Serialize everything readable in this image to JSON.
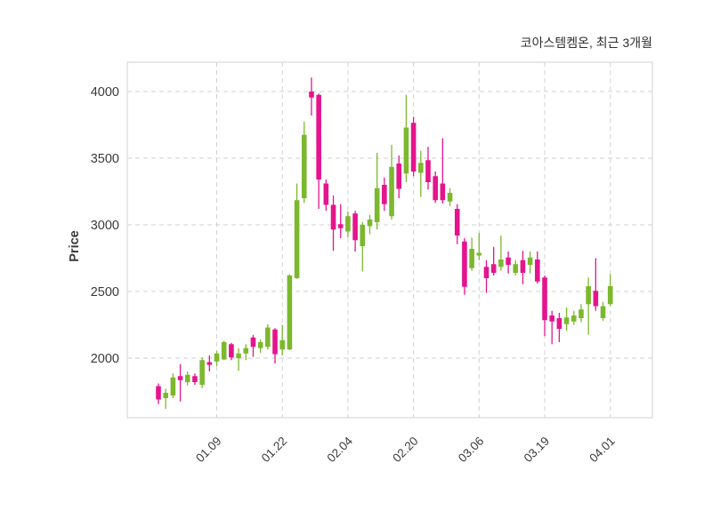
{
  "header": {
    "title": "코아스템켐온, 최근 3개월"
  },
  "chart_data": {
    "type": "candlestick",
    "title": "코아스템켐온, 최근 3개월",
    "xlabel": "",
    "ylabel": "Price",
    "grid": true,
    "legend": "none",
    "ylim": [
      1550,
      4220
    ],
    "yticks": [
      2000,
      2500,
      3000,
      3500,
      4000
    ],
    "ytick_labels": [
      "2000",
      "2500",
      "3000",
      "3500",
      "4000"
    ],
    "xtick_labels": [
      "01.09",
      "01.22",
      "02.04",
      "02.20",
      "03.06",
      "03.19",
      "04.01"
    ],
    "xtick_indices": [
      8,
      17,
      26,
      35,
      44,
      53,
      62
    ],
    "up_color": "#7cb82e",
    "down_color": "#e5148d",
    "grid_color": "#d2d2d2",
    "border_color": "#d9d9d9",
    "background_color": "#ffffff",
    "candles_format": [
      "open",
      "high",
      "low",
      "close"
    ],
    "candles": [
      [
        1790,
        1810,
        1655,
        1690
      ],
      [
        1700,
        1770,
        1620,
        1740
      ],
      [
        1720,
        1885,
        1700,
        1855
      ],
      [
        1865,
        1955,
        1675,
        1835
      ],
      [
        1820,
        1900,
        1795,
        1875
      ],
      [
        1865,
        1885,
        1800,
        1820
      ],
      [
        1800,
        2005,
        1775,
        1985
      ],
      [
        1970,
        2020,
        1900,
        1950
      ],
      [
        1975,
        2055,
        1940,
        2035
      ],
      [
        1990,
        2130,
        1985,
        2120
      ],
      [
        2105,
        2115,
        1985,
        2005
      ],
      [
        2000,
        2075,
        1905,
        2035
      ],
      [
        2035,
        2105,
        1985,
        2075
      ],
      [
        2155,
        2175,
        2010,
        2085
      ],
      [
        2075,
        2140,
        2040,
        2120
      ],
      [
        2085,
        2255,
        2065,
        2230
      ],
      [
        2215,
        2225,
        1960,
        2030
      ],
      [
        2065,
        2250,
        2020,
        2135
      ],
      [
        2065,
        2630,
        2060,
        2620
      ],
      [
        2600,
        3310,
        2595,
        3185
      ],
      [
        3200,
        3775,
        3165,
        3675
      ],
      [
        4000,
        4105,
        3820,
        3955
      ],
      [
        3975,
        3985,
        3120,
        3340
      ],
      [
        3310,
        3340,
        3105,
        3150
      ],
      [
        3150,
        3220,
        2805,
        2965
      ],
      [
        3005,
        3155,
        2900,
        2975
      ],
      [
        2950,
        3100,
        2905,
        3065
      ],
      [
        3085,
        3105,
        2800,
        2885
      ],
      [
        2840,
        3020,
        2650,
        3000
      ],
      [
        2990,
        3075,
        2930,
        3040
      ],
      [
        3020,
        3540,
        2965,
        3275
      ],
      [
        3300,
        3355,
        3105,
        3155
      ],
      [
        3065,
        3600,
        3040,
        3435
      ],
      [
        3460,
        3520,
        3200,
        3270
      ],
      [
        3385,
        3975,
        3320,
        3730
      ],
      [
        3765,
        3810,
        3365,
        3400
      ],
      [
        3390,
        3555,
        3210,
        3465
      ],
      [
        3485,
        3585,
        3265,
        3320
      ],
      [
        3365,
        3400,
        3165,
        3185
      ],
      [
        3310,
        3650,
        3160,
        3185
      ],
      [
        3175,
        3275,
        3140,
        3240
      ],
      [
        3120,
        3155,
        2855,
        2920
      ],
      [
        2875,
        2900,
        2475,
        2535
      ],
      [
        2675,
        2905,
        2655,
        2820
      ],
      [
        2770,
        2940,
        2735,
        2790
      ],
      [
        2685,
        2735,
        2490,
        2600
      ],
      [
        2705,
        2835,
        2620,
        2640
      ],
      [
        2685,
        2920,
        2655,
        2740
      ],
      [
        2755,
        2800,
        2635,
        2700
      ],
      [
        2640,
        2735,
        2620,
        2705
      ],
      [
        2735,
        2805,
        2555,
        2640
      ],
      [
        2700,
        2800,
        2635,
        2755
      ],
      [
        2740,
        2800,
        2560,
        2575
      ],
      [
        2605,
        2620,
        2165,
        2285
      ],
      [
        2320,
        2355,
        2105,
        2275
      ],
      [
        2300,
        2340,
        2120,
        2220
      ],
      [
        2255,
        2380,
        2205,
        2305
      ],
      [
        2275,
        2355,
        2250,
        2320
      ],
      [
        2300,
        2405,
        2270,
        2365
      ],
      [
        2405,
        2605,
        2175,
        2540
      ],
      [
        2505,
        2750,
        2355,
        2390
      ],
      [
        2300,
        2420,
        2280,
        2390
      ],
      [
        2405,
        2630,
        2390,
        2540
      ]
    ]
  }
}
